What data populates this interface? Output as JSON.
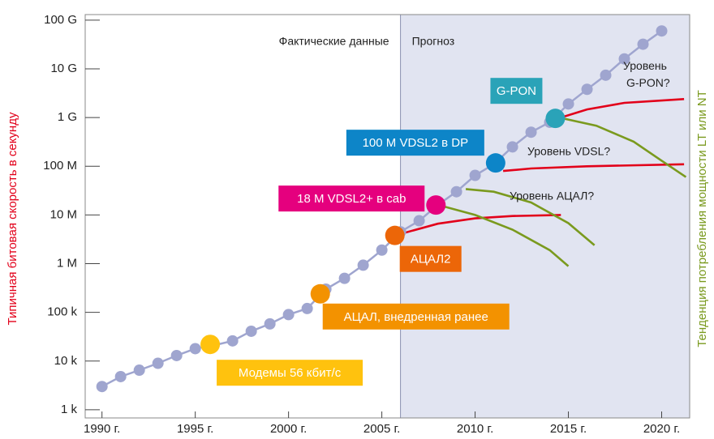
{
  "chart_data": {
    "type": "line",
    "ylabel": "Типичная битовая скорость в секунду",
    "y2label": "Тенденция потребления мощности LT или NT",
    "log_y": true,
    "xlim": [
      1989.1,
      2021.5
    ],
    "ylim": [
      680,
      130000000000
    ],
    "xticks": [
      {
        "value": 1990,
        "label": "1990 г."
      },
      {
        "value": 1995,
        "label": "1995 г."
      },
      {
        "value": 2000,
        "label": "2000 г."
      },
      {
        "value": 2005,
        "label": "2005 г."
      },
      {
        "value": 2010,
        "label": "2010 г."
      },
      {
        "value": 2015,
        "label": "2015 г."
      },
      {
        "value": 2020,
        "label": "2020 г."
      }
    ],
    "yticks": [
      {
        "value": 1000,
        "label": "1 k"
      },
      {
        "value": 10000,
        "label": "10 k"
      },
      {
        "value": 100000,
        "label": "100 k"
      },
      {
        "value": 1000000,
        "label": "1 M"
      },
      {
        "value": 10000000,
        "label": "10 M"
      },
      {
        "value": 100000000,
        "label": "100 M"
      },
      {
        "value": 1000000000,
        "label": "1 G"
      },
      {
        "value": 10000000000,
        "label": "10 G"
      },
      {
        "value": 100000000000,
        "label": "100 G"
      }
    ],
    "forecast_start": 2006,
    "region_labels": [
      "Фактические данные",
      "Прогноз"
    ],
    "trend": {
      "color": "#9fa5cf",
      "x": [
        1990,
        1991,
        1992,
        1993,
        1994,
        1995,
        1996,
        1997,
        1998,
        1999,
        2000,
        2001,
        2002,
        2003,
        2004,
        2005,
        2006,
        2007,
        2008,
        2009,
        2010,
        2011,
        2012,
        2013,
        2014,
        2015,
        2016,
        2017,
        2018,
        2019,
        2020
      ],
      "values": [
        3000,
        4800,
        6500,
        9000,
        13000,
        18000,
        21000,
        26000,
        41000,
        58000,
        90000,
        120000,
        300000,
        500000,
        930000,
        1900000,
        4500000,
        7600000,
        16000000,
        30000000,
        65000000,
        110000000,
        250000000,
        500000000,
        800000000,
        1900000000,
        3800000000,
        7400000000,
        16000000000,
        32000000000,
        60000000000
      ]
    },
    "milestones": {
      "labels": [
        "Модемы 56 кбит/с",
        "АЦАЛ, внедренная ранее",
        "АЦАЛ2",
        "18 M VDSL2+ в cab",
        "100 M VDSL2 в DP",
        "G-PON"
      ],
      "colors": [
        "#ffc20e",
        "#f39200",
        "#ec6608",
        "#e5007e",
        "#0d85c8",
        "#2aa3b8"
      ],
      "x": [
        1995.8,
        2001.7,
        2005.7,
        2007.9,
        2011.1,
        2014.3
      ],
      "values": [
        22000,
        240000,
        3800000,
        16000000,
        117000000,
        960000000
      ]
    },
    "series": [
      {
        "color": "#e2001a",
        "x": [
          2005.7,
          2008,
          2010,
          2012,
          2014.6
        ],
        "values": [
          3800000,
          6600000,
          8500000,
          9500000,
          10000000
        ]
      },
      {
        "color": "#e2001a",
        "x": [
          2011.5,
          2013,
          2016,
          2021.2
        ],
        "values": [
          80000000,
          90000000,
          100000000,
          110000000
        ]
      },
      {
        "color": "#e2001a",
        "x": [
          2014.6,
          2016,
          2018,
          2021.2
        ],
        "values": [
          1000000000,
          1470000000,
          2000000000,
          2400000000
        ]
      },
      {
        "color": "#7a9a1e",
        "x": [
          2014.5,
          2016.5,
          2018.5,
          2020,
          2021.3
        ],
        "values": [
          1000000000,
          680000000,
          320000000,
          130000000,
          60000000
        ]
      },
      {
        "color": "#7a9a1e",
        "x": [
          2009.5,
          2011,
          2013,
          2015,
          2016.4
        ],
        "values": [
          34000000,
          30000000,
          18000000,
          6800000,
          2400000
        ]
      },
      {
        "color": "#7a9a1e",
        "x": [
          2008.3,
          2010,
          2012,
          2014,
          2015
        ],
        "values": [
          15000000,
          10000000,
          5000000,
          1900000,
          890000
        ]
      }
    ],
    "level_labels": [
      "Уровень G-PON?",
      "Уровень VDSL?",
      "Уровень АЦАЛ?"
    ]
  }
}
